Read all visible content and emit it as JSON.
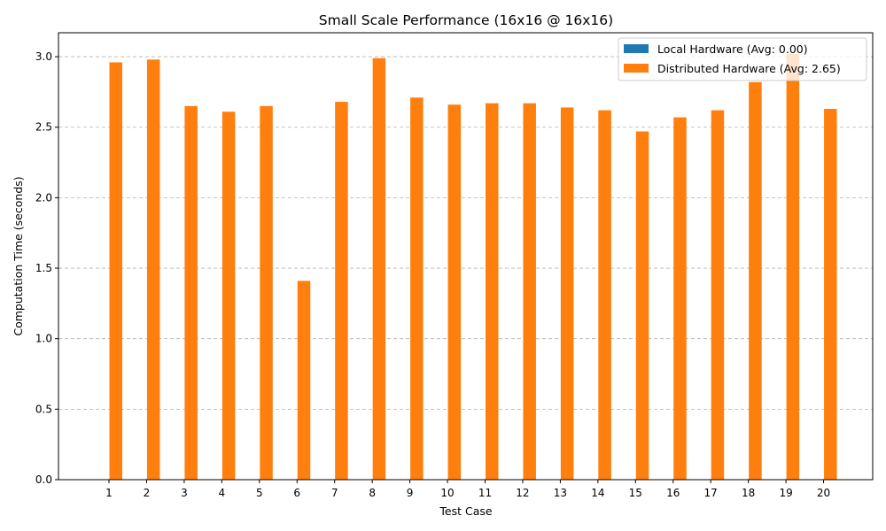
{
  "chart_data": {
    "type": "bar",
    "title": "Small Scale Performance (16x16 @ 16x16)",
    "xlabel": "Test Case",
    "ylabel": "Computation Time (seconds)",
    "categories": [
      "1",
      "2",
      "3",
      "4",
      "5",
      "6",
      "7",
      "8",
      "9",
      "10",
      "11",
      "12",
      "13",
      "14",
      "15",
      "16",
      "17",
      "18",
      "19",
      "20"
    ],
    "ylim": [
      0,
      3.17
    ],
    "yticks": [
      0.0,
      0.5,
      1.0,
      1.5,
      2.0,
      2.5,
      3.0
    ],
    "ytick_labels": [
      "0.0",
      "0.5",
      "1.0",
      "1.5",
      "2.0",
      "2.5",
      "3.0"
    ],
    "grid": "y-dashed",
    "legend_position": "top-right",
    "series": [
      {
        "name": "Local Hardware (Avg: 0.00)",
        "color": "#1f77b4",
        "values": [
          0,
          0,
          0,
          0,
          0,
          0,
          0,
          0,
          0,
          0,
          0,
          0,
          0,
          0,
          0,
          0,
          0,
          0,
          0,
          0
        ]
      },
      {
        "name": "Distributed Hardware (Avg: 2.65)",
        "color": "#ff7f0e",
        "values": [
          2.96,
          2.98,
          2.65,
          2.61,
          2.65,
          1.41,
          2.68,
          2.99,
          2.71,
          2.66,
          2.67,
          2.67,
          2.64,
          2.62,
          2.47,
          2.57,
          2.62,
          2.82,
          3.02,
          2.63
        ]
      }
    ]
  }
}
